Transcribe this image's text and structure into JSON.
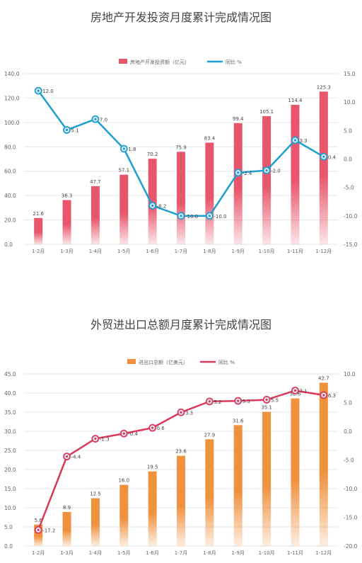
{
  "chart_data": [
    {
      "type": "bar",
      "title": "房地产开发投资月度累计完成情况图",
      "categories": [
        "1-2月",
        "1-3月",
        "1-4月",
        "1-5月",
        "1-6月",
        "1-7月",
        "1-8月",
        "1-9月",
        "1-10月",
        "1-11月",
        "1-12月"
      ],
      "series": [
        {
          "name": "房地产开发投资额（亿元）",
          "type": "bar",
          "axis": "left",
          "values": [
            21.6,
            36.3,
            47.7,
            57.1,
            70.2,
            75.9,
            83.4,
            99.4,
            105.1,
            114.4,
            125.3
          ],
          "labels": [
            "21.6",
            "36.3",
            "47.7",
            "57.1",
            "70.2",
            "75.9",
            "83.4",
            "99.4",
            "105.1",
            "114.4",
            "125.3"
          ]
        },
        {
          "name": "同比  %",
          "type": "line",
          "axis": "right",
          "values": [
            12.0,
            5.1,
            7.0,
            1.8,
            -8.2,
            -10.0,
            -10.0,
            -2.4,
            -2.0,
            3.3,
            0.4
          ],
          "labels": [
            "12.0",
            "5.1",
            "7.0",
            "1.8",
            "-8.2",
            "-10.0",
            "-10.0",
            "-2.4",
            "-2.0",
            "3.3",
            "0.4"
          ]
        }
      ],
      "y_left": {
        "range": [
          0,
          140
        ],
        "ticks": [
          "0.0",
          "20.0",
          "40.0",
          "60.0",
          "80.0",
          "100.0",
          "120.0",
          "140.0"
        ]
      },
      "y_right": {
        "range": [
          -15,
          15
        ],
        "ticks": [
          "-15.0",
          "-10.0",
          "-5.0",
          "0.0",
          "5.0",
          "10.0",
          "15.0"
        ]
      },
      "legend": "top-center",
      "grid": true,
      "colors": {
        "bar": "#e8566c",
        "line": "#1e9fd0"
      }
    },
    {
      "type": "bar",
      "title": "外贸进出口总额月度累计完成情况图",
      "categories": [
        "1-2月",
        "1-3月",
        "1-4月",
        "1-5月",
        "1-6月",
        "1-7月",
        "1-8月",
        "1-9月",
        "1-10月",
        "1-11月",
        "1-12月"
      ],
      "series": [
        {
          "name": "进出口总额（亿美元）",
          "type": "bar",
          "axis": "left",
          "values": [
            5.6,
            8.9,
            12.5,
            16.0,
            19.5,
            23.6,
            27.9,
            31.6,
            35.1,
            38.6,
            42.7
          ],
          "labels": [
            "5.6",
            "8.9",
            "12.5",
            "16.0",
            "19.5",
            "23.6",
            "27.9",
            "31.6",
            "35.1",
            "38.6",
            "42.7"
          ]
        },
        {
          "name": "同比  %",
          "type": "line",
          "axis": "right",
          "values": [
            -17.2,
            -4.4,
            -1.3,
            -0.4,
            0.6,
            3.3,
            5.2,
            5.3,
            5.5,
            7.1,
            6.3
          ],
          "labels": [
            "-17.2",
            "-4.4",
            "-1.3",
            "-0.4",
            "0.6",
            "3.3",
            "5.2",
            "5.3",
            "5.5",
            "7.1",
            "6.3"
          ]
        }
      ],
      "y_left": {
        "range": [
          0,
          45
        ],
        "ticks": [
          "0.0",
          "5.0",
          "10.0",
          "15.0",
          "20.0",
          "25.0",
          "30.0",
          "35.0",
          "40.0",
          "45.0"
        ]
      },
      "y_right": {
        "range": [
          -20,
          10
        ],
        "ticks": [
          "-20.0",
          "-15.0",
          "-10.0",
          "-5.0",
          "0.0",
          "5.0",
          "10.0"
        ]
      },
      "legend": "top-center",
      "grid": true,
      "colors": {
        "bar": "#f0913e",
        "line": "#d93a5a"
      }
    }
  ]
}
